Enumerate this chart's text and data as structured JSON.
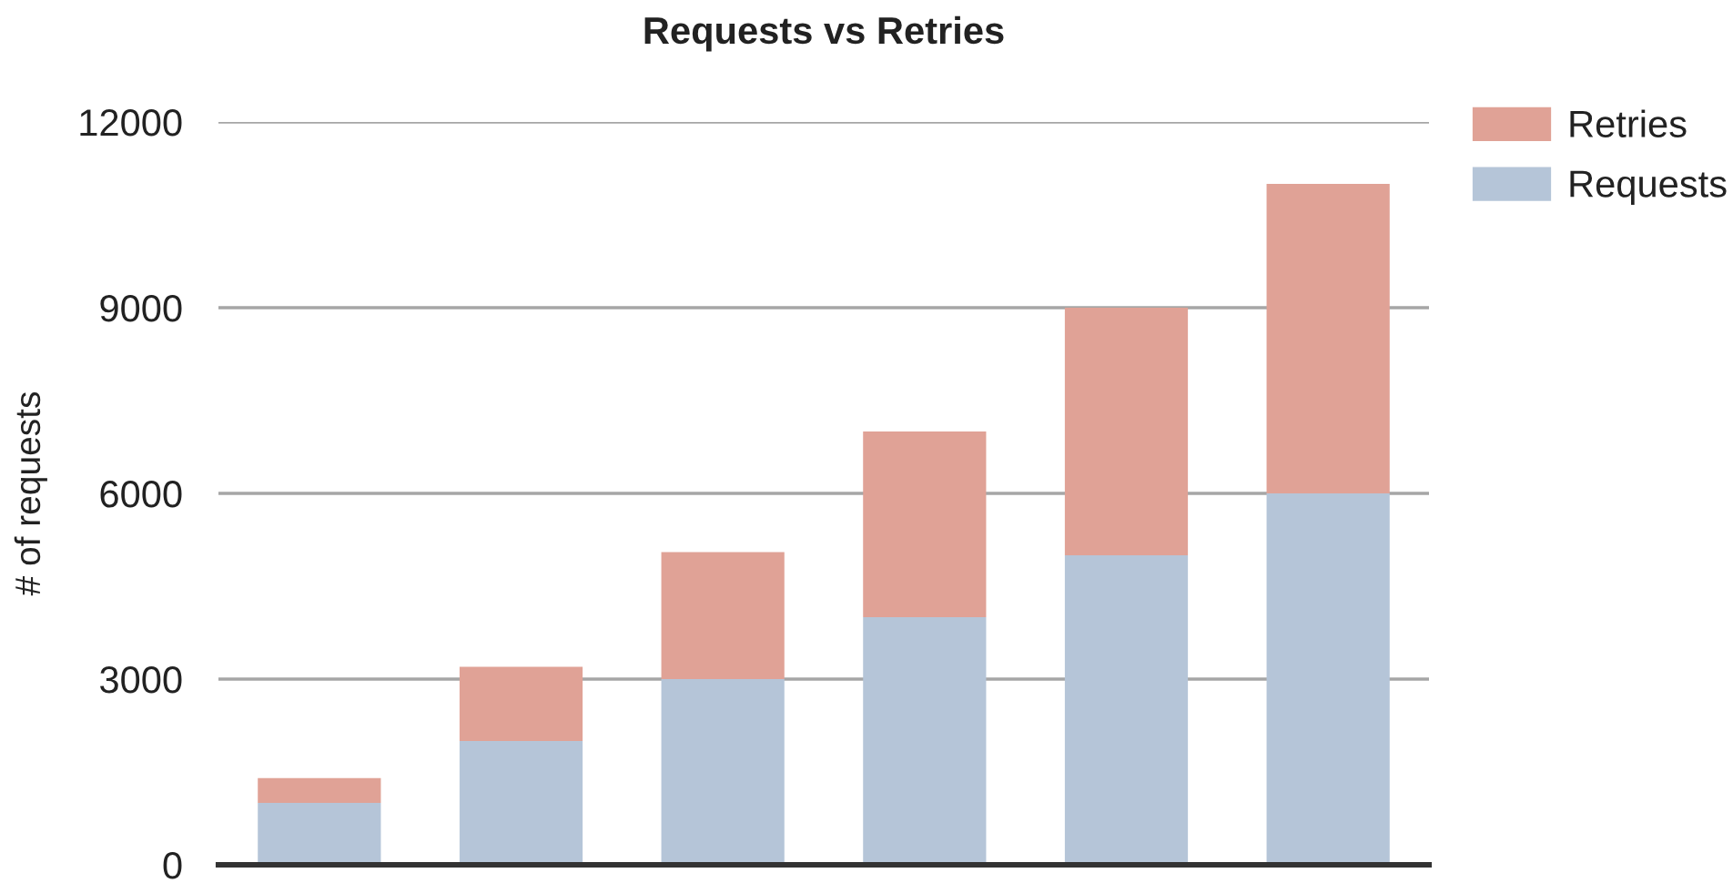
{
  "chart_data": {
    "type": "bar",
    "title": "Requests vs Retries",
    "ylabel": "# of requests",
    "categories": [
      null,
      null,
      null,
      null,
      null,
      null
    ],
    "stacked": true,
    "series": [
      {
        "name": "Requests",
        "color": "#b5c5d8",
        "values": [
          1000,
          2000,
          3000,
          4000,
          5000,
          6000
        ]
      },
      {
        "name": "Retries",
        "color": "#e0a296",
        "values": [
          400,
          1200,
          2050,
          3000,
          4000,
          5000
        ]
      }
    ],
    "ylim": [
      0,
      12000
    ],
    "yticks": [
      0,
      3000,
      6000,
      9000,
      12000
    ],
    "grid": "y",
    "legend": "top right",
    "tick_labels": "y"
  }
}
